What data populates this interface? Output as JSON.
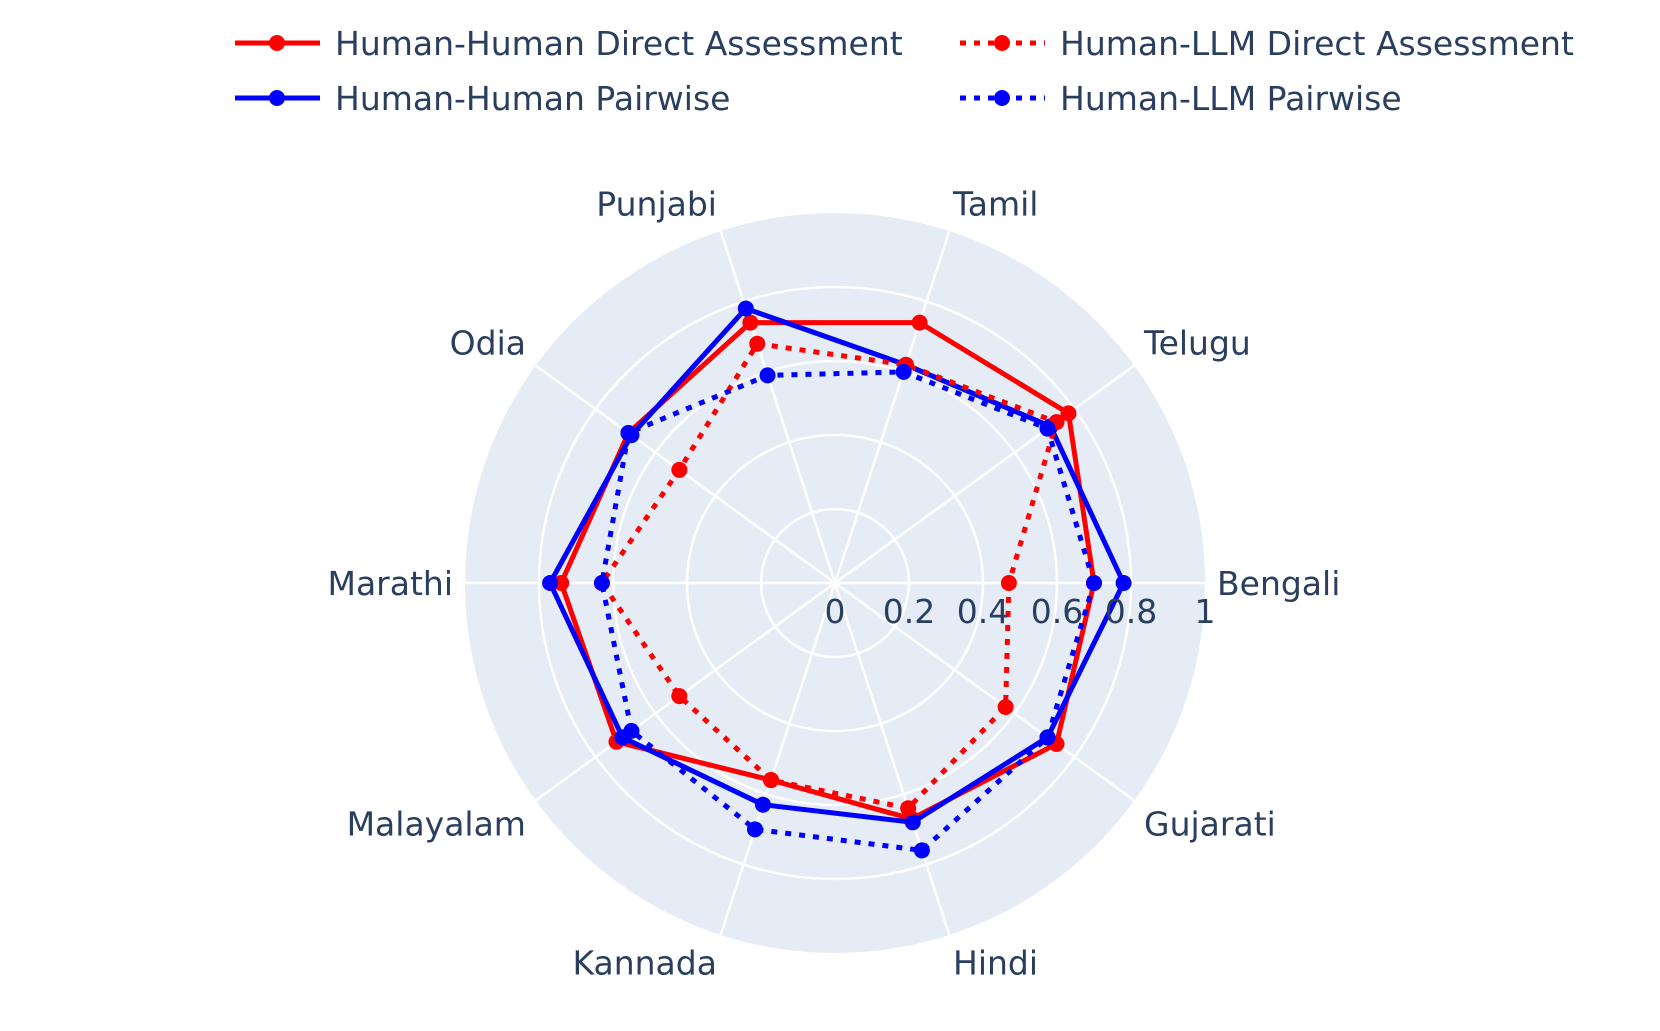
{
  "chart_data": {
    "type": "radar",
    "categories": [
      "Bengali",
      "Gujarati",
      "Hindi",
      "Kannada",
      "Malayalam",
      "Marathi",
      "Odia",
      "Punjabi",
      "Tamil",
      "Telugu"
    ],
    "radial_range": [
      0,
      1
    ],
    "radial_ticks": [
      "0",
      "0.2",
      "0.4",
      "0.6",
      "0.8",
      "1"
    ],
    "grid": true,
    "legend_placement": "top",
    "series": [
      {
        "name": "Human-Human Direct Assessment",
        "color": "#ff0000",
        "dash": "solid",
        "values": [
          0.7,
          0.74,
          0.67,
          0.56,
          0.73,
          0.74,
          0.69,
          0.74,
          0.74,
          0.78
        ]
      },
      {
        "name": "Human-Human Pairwise",
        "color": "#0000ff",
        "dash": "solid",
        "values": [
          0.78,
          0.71,
          0.68,
          0.63,
          0.71,
          0.77,
          0.68,
          0.78,
          0.62,
          0.72
        ]
      },
      {
        "name": "Human-LLM Direct Assessment",
        "color": "#ff0000",
        "dash": "dot",
        "values": [
          0.47,
          0.57,
          0.64,
          0.56,
          0.52,
          0.63,
          0.52,
          0.68,
          0.62,
          0.74
        ]
      },
      {
        "name": "Human-LLM Pairwise",
        "color": "#0000ff",
        "dash": "dot",
        "values": [
          0.7,
          0.71,
          0.76,
          0.7,
          0.68,
          0.63,
          0.69,
          0.59,
          0.6,
          0.71
        ]
      }
    ]
  }
}
